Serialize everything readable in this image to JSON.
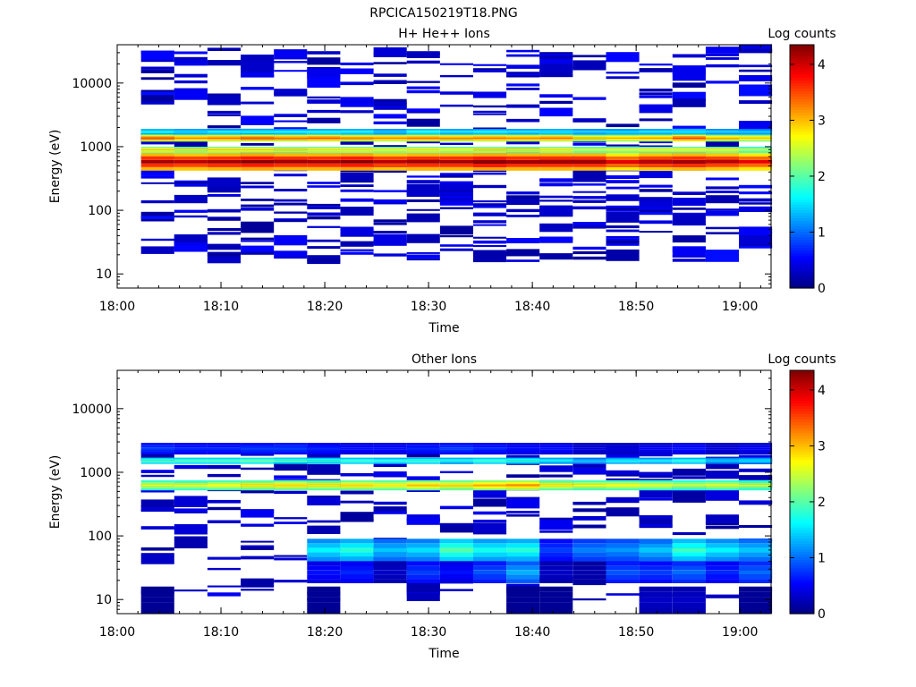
{
  "figure": {
    "title": "RPCICA150219T18.PNG"
  },
  "colors": {
    "colormap": [
      "#00007f",
      "#0000ff",
      "#007fff",
      "#00ffff",
      "#7fff7f",
      "#ffff00",
      "#ff7f00",
      "#ff0000",
      "#7f0000"
    ],
    "background": "#ffffff"
  },
  "chart_data": [
    {
      "type": "heatmap",
      "title": "H+ He++ Ions",
      "xlabel": "Time",
      "ylabel": "Energy (eV)",
      "colorbar_label": "Log counts",
      "x_ticks": [
        "18:00",
        "18:10",
        "18:20",
        "18:30",
        "18:40",
        "18:50",
        "19:00"
      ],
      "y_ticks": [
        "10",
        "100",
        "1000",
        "10000"
      ],
      "y_scale": "log",
      "ylim": [
        6,
        40000
      ],
      "xlim": [
        "18:00",
        "19:03"
      ],
      "colorbar_ticks": [
        "0",
        "1",
        "2",
        "3",
        "4"
      ],
      "colorbar_range": [
        0,
        4.35
      ],
      "time_bin_start_minutes": [
        2.3,
        5.5,
        8.7,
        11.9,
        15.1,
        18.3,
        21.5,
        24.7,
        27.9,
        31.1,
        34.3,
        37.5,
        40.7,
        43.9,
        47.1,
        50.3,
        53.5,
        56.7,
        59.9
      ],
      "bands": [
        {
          "e_low": 420,
          "e_high": 800,
          "levels": [
            4.2,
            4.1,
            4.2,
            4.3,
            4.2,
            4.2,
            4.3,
            4.1,
            4.2,
            4.2,
            4.3,
            4.2,
            4.2,
            4.2,
            3.9,
            4.1,
            4.2,
            4.1,
            3.9
          ]
        },
        {
          "e_low": 800,
          "e_high": 1000,
          "levels": [
            3.0,
            2.8,
            3.0,
            3.0,
            2.9,
            2.9,
            2.9,
            2.8,
            2.9,
            2.8,
            2.9,
            2.8,
            2.9,
            2.6,
            2.7,
            2.8,
            2.8,
            2.8,
            2.5
          ]
        },
        {
          "e_low": 1200,
          "e_high": 1550,
          "levels": [
            3.5,
            3.3,
            3.4,
            3.5,
            3.4,
            3.5,
            3.3,
            3.3,
            3.4,
            3.3,
            3.4,
            3.3,
            3.4,
            3.0,
            3.1,
            3.2,
            3.6,
            3.1,
            3.0
          ]
        },
        {
          "e_low": 1550,
          "e_high": 1900,
          "levels": [
            1.8,
            1.6,
            1.7,
            1.8,
            1.7,
            1.8,
            1.7,
            1.5,
            1.8,
            1.6,
            1.7,
            1.6,
            1.7,
            1.5,
            1.6,
            1.6,
            1.7,
            1.5,
            1.5
          ]
        }
      ],
      "sparse_levels": [
        0.1,
        0.6
      ]
    },
    {
      "type": "heatmap",
      "title": "Other Ions",
      "xlabel": "Time",
      "ylabel": "Energy (eV)",
      "colorbar_label": "Log counts",
      "x_ticks": [
        "18:00",
        "18:10",
        "18:20",
        "18:30",
        "18:40",
        "18:50",
        "19:00"
      ],
      "y_ticks": [
        "10",
        "100",
        "1000",
        "10000"
      ],
      "y_scale": "log",
      "ylim": [
        6,
        40000
      ],
      "xlim": [
        "18:00",
        "19:03"
      ],
      "colorbar_ticks": [
        "0",
        "1",
        "2",
        "3",
        "4"
      ],
      "colorbar_range": [
        0,
        4.35
      ],
      "time_bin_start_minutes": [
        2.3,
        5.5,
        8.7,
        11.9,
        15.1,
        18.3,
        21.5,
        24.7,
        27.9,
        31.1,
        34.3,
        37.5,
        40.7,
        43.9,
        47.1,
        50.3,
        53.5,
        56.7,
        59.9
      ],
      "bands": [
        {
          "e_low": 520,
          "e_high": 750,
          "levels": [
            2.6,
            2.6,
            2.7,
            2.8,
            2.9,
            2.8,
            2.9,
            2.8,
            3.0,
            2.9,
            3.1,
            3.2,
            2.8,
            2.7,
            2.7,
            2.6,
            2.5,
            2.6,
            2.5
          ]
        },
        {
          "e_low": 1350,
          "e_high": 1700,
          "levels": [
            2.0,
            2.0,
            2.0,
            2.1,
            2.0,
            1.9,
            1.9,
            1.8,
            1.9,
            1.8,
            1.9,
            1.9,
            1.7,
            1.4,
            1.7,
            1.6,
            1.8,
            1.5,
            1.6
          ]
        },
        {
          "e_low": 1900,
          "e_high": 2900,
          "levels": [
            0.8,
            0.7,
            0.7,
            0.8,
            0.8,
            0.7,
            0.6,
            0.6,
            0.7,
            0.8,
            0.7,
            0.6,
            0.6,
            0.4,
            0.4,
            0.5,
            0.6,
            0.4,
            0.5
          ]
        },
        {
          "e_low": 40,
          "e_high": 90,
          "levels": [
            0,
            0,
            0,
            0,
            0,
            1.6,
            1.8,
            1.4,
            1.5,
            2.0,
            1.7,
            1.8,
            0.8,
            1.1,
            1.2,
            1.4,
            1.9,
            1.6,
            1.4
          ]
        },
        {
          "e_low": 18,
          "e_high": 40,
          "levels": [
            0,
            0,
            0,
            0,
            0,
            0.6,
            0.7,
            0.3,
            0.8,
            0.6,
            0.9,
            1.3,
            0.3,
            0.2,
            0.9,
            0.8,
            1.0,
            0.7,
            1.0
          ]
        },
        {
          "e_low": 6,
          "e_high": 16,
          "levels": [
            0.1,
            0,
            0,
            0,
            0,
            0.1,
            0,
            0,
            0,
            0,
            0,
            0.1,
            0.1,
            0,
            0,
            0.3,
            0.3,
            0,
            0.1
          ]
        }
      ],
      "sparse_levels": [
        0.1,
        0.5
      ]
    }
  ]
}
